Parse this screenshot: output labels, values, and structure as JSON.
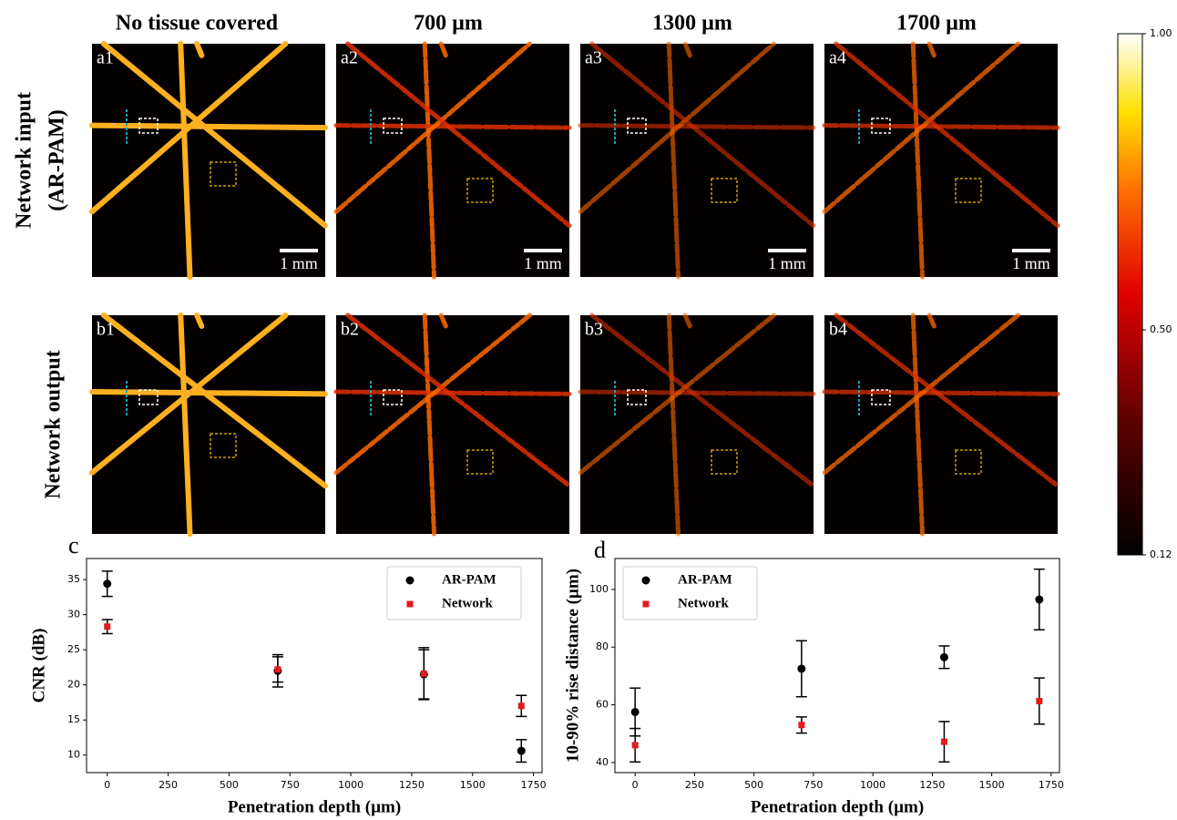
{
  "figure": {
    "column_titles": [
      "No tissue covered",
      "700 µm",
      "1300 µm",
      "1700 µm"
    ],
    "row_labels": [
      "Network input",
      "(AR-PAM)",
      "Network output"
    ],
    "panel_labels": [
      [
        "a1",
        "a2",
        "a3",
        "a4"
      ],
      [
        "b1",
        "b2",
        "b3",
        "b4"
      ]
    ],
    "scale_bar_labels": [
      "1 mm",
      "1 mm",
      "1 mm",
      "1 mm"
    ],
    "colorbar": {
      "lim": [
        0.12,
        1
      ],
      "ticks": [
        {
          "value": 1,
          "label": "1.00"
        },
        {
          "value": 0.5,
          "label": "0.50"
        },
        0.12
      ]
    }
  },
  "chart_data": [
    {
      "type": "errorbar",
      "panel_label": "c",
      "xlabel": "Penetration depth (µm)",
      "ylabel": "CNR (dB)",
      "x": [
        0,
        700,
        1300,
        1700
      ],
      "series": [
        {
          "name": "AR-PAM",
          "color": "#000000",
          "marker": "circle",
          "values": [
            34.4,
            22.0,
            21.5,
            10.6
          ],
          "errors": [
            1.8,
            2.3,
            3.5,
            1.6
          ]
        },
        {
          "name": "Network",
          "color": "#e41a1c",
          "marker": "square",
          "values": [
            28.3,
            22.2,
            21.6,
            17.0
          ],
          "errors": [
            1.0,
            1.8,
            3.7,
            1.5
          ]
        }
      ],
      "xlim": [
        -85,
        1785
      ],
      "ylim": [
        7.5,
        38
      ],
      "xticks": [
        0,
        250,
        500,
        750,
        1000,
        1250,
        1500,
        1750
      ],
      "yticks": [
        10,
        15,
        20,
        25,
        30,
        35
      ],
      "legend": "upper right"
    },
    {
      "type": "errorbar",
      "panel_label": "d",
      "xlabel": "Penetration depth (µm)",
      "ylabel": "10-90% rise distance (µm)",
      "x": [
        0,
        700,
        1300,
        1700
      ],
      "series": [
        {
          "name": "AR-PAM",
          "color": "#000000",
          "marker": "circle",
          "values": [
            57.5,
            72.5,
            76.5,
            96.5
          ],
          "errors": [
            8.3,
            9.7,
            3.9,
            10.5
          ]
        },
        {
          "name": "Network",
          "color": "#e41a1c",
          "marker": "square",
          "values": [
            46.0,
            53.0,
            47.2,
            61.3
          ],
          "errors": [
            5.8,
            2.8,
            7.0,
            8.0
          ]
        }
      ],
      "xlim": [
        -85,
        1785
      ],
      "ylim": [
        36.5,
        110.7
      ],
      "xticks": [
        0,
        250,
        500,
        750,
        1000,
        1250,
        1500,
        1750
      ],
      "yticks": [
        40,
        60,
        80,
        100
      ],
      "legend": "upper left"
    }
  ]
}
